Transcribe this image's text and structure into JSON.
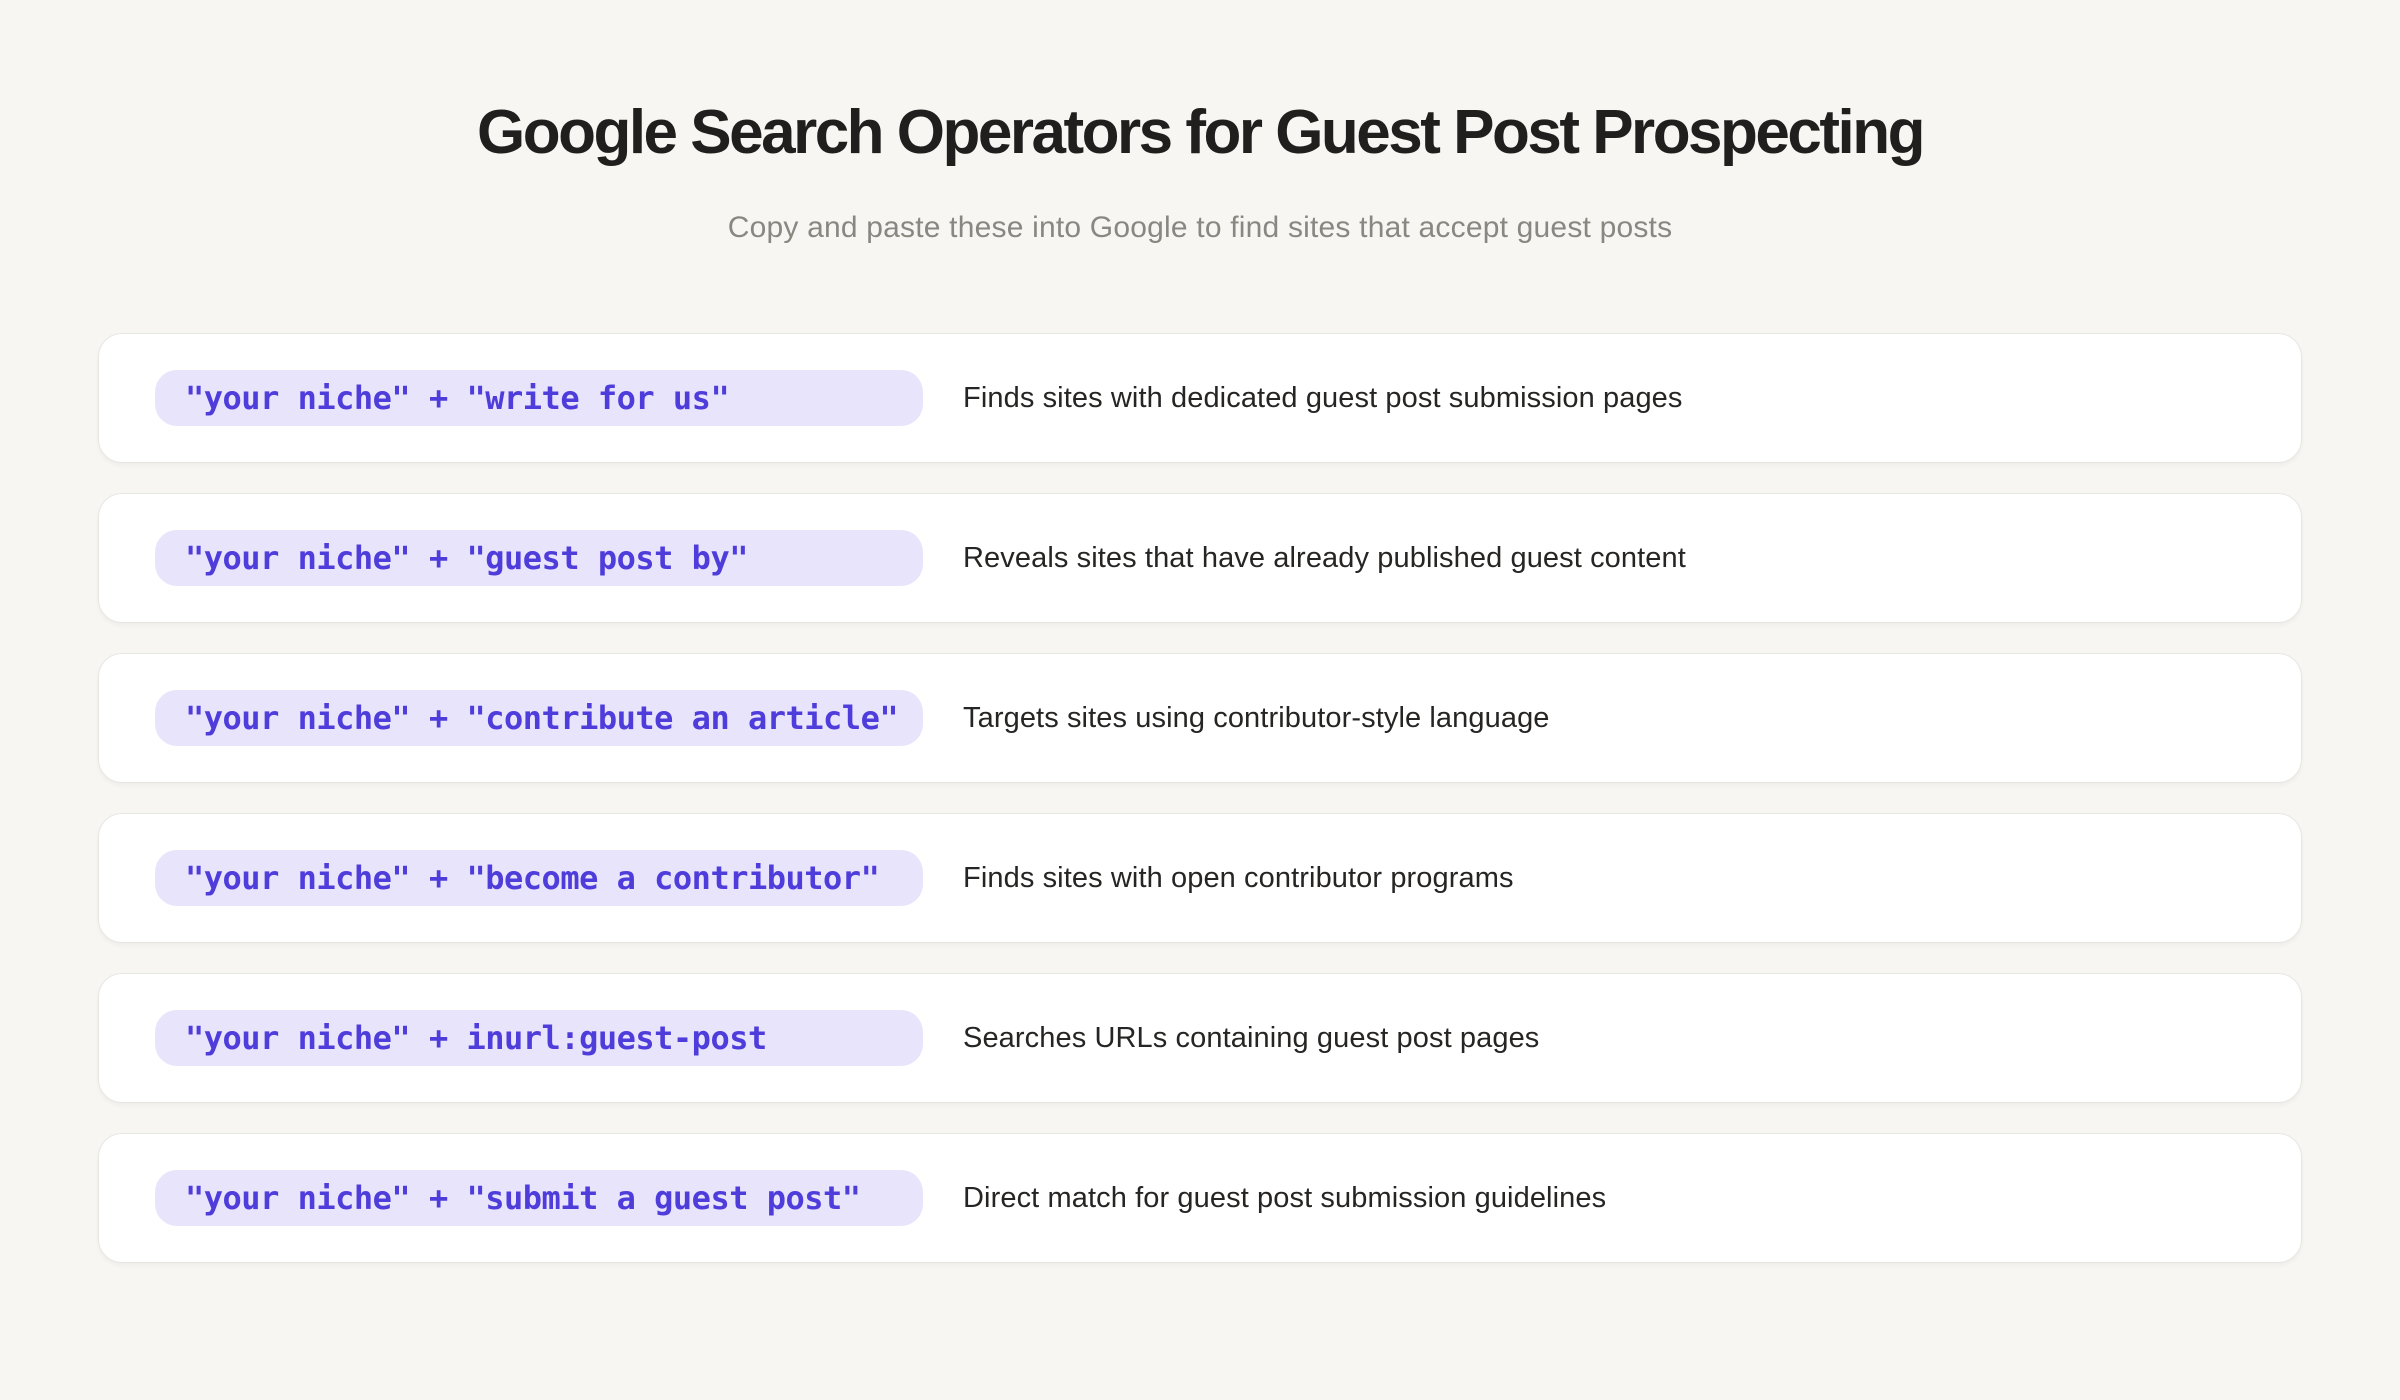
{
  "page": {
    "title": "Google Search Operators for Guest Post Prospecting",
    "subtitle": "Copy and paste these into Google to find sites that accept guest posts"
  },
  "colors": {
    "page_background": "#f7f6f2",
    "card_background": "#ffffff",
    "card_border": "#e8e6e1",
    "pill_background": "#e8e4fb",
    "pill_text": "#4e3cdb",
    "title_text": "#211f1e",
    "subtitle_text": "#8a8781",
    "description_text": "#262524"
  },
  "operators": [
    {
      "query": "\"your niche\" + \"write for us\"",
      "description": "Finds sites with dedicated guest post submission pages"
    },
    {
      "query": "\"your niche\" + \"guest post by\"",
      "description": "Reveals sites that have already published guest content"
    },
    {
      "query": "\"your niche\" + \"contribute an article\"",
      "description": "Targets sites using contributor-style language"
    },
    {
      "query": "\"your niche\" + \"become a contributor\"",
      "description": "Finds sites with open contributor programs"
    },
    {
      "query": "\"your niche\" + inurl:guest-post",
      "description": "Searches URLs containing guest post pages"
    },
    {
      "query": "\"your niche\" + \"submit a guest post\"",
      "description": "Direct match for guest post submission guidelines"
    }
  ]
}
